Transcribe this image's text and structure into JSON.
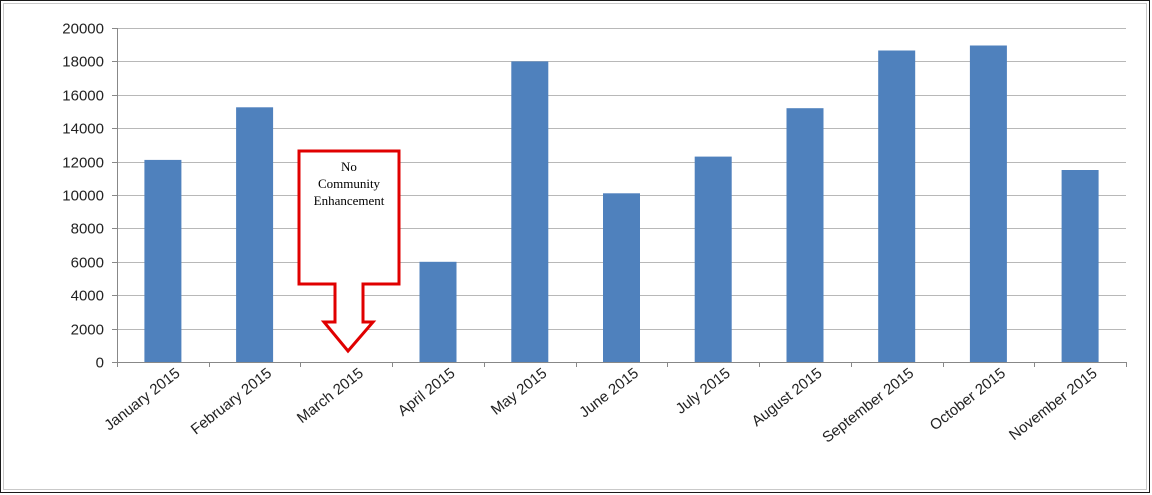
{
  "chart_data": {
    "type": "bar",
    "categories": [
      "January 2015",
      "February 2015",
      "March 2015",
      "April 2015",
      "May 2015",
      "June 2015",
      "July 2015",
      "August 2015",
      "September 2015",
      "October 2015",
      "November 2015"
    ],
    "values": [
      12100,
      15250,
      0,
      6000,
      18000,
      10100,
      12300,
      15200,
      18650,
      18950,
      11500
    ],
    "yticks": [
      0,
      2000,
      4000,
      6000,
      8000,
      10000,
      12000,
      14000,
      16000,
      18000,
      20000
    ],
    "ylim": [
      0,
      20000
    ],
    "grid": true,
    "bar_color": "#4f81bd",
    "annotation": {
      "lines": [
        "No",
        "Community",
        "Enhancement"
      ],
      "category": "March 2015",
      "color": "#e00000"
    }
  }
}
